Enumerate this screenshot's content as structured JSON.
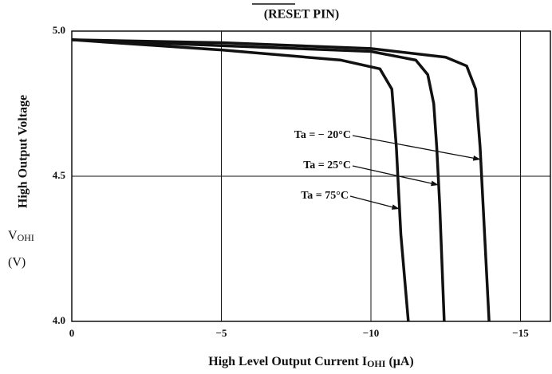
{
  "chart_data": {
    "type": "line",
    "title": "(RESET PIN)",
    "y_label": "High Output Voltage",
    "y_symbol": "V",
    "y_symbol_sub": "OHI",
    "y_unit": "(V)",
    "x_label": "High Level Output Current I",
    "x_label_sub": "OHI",
    "x_label_unit": " (μA)",
    "xlim": [
      0,
      -16
    ],
    "ylim": [
      4.0,
      5.0
    ],
    "xticks": [
      0,
      {
        "value": -5,
        "label": "−5"
      },
      {
        "value": -10,
        "label": "−10"
      },
      {
        "value": -15,
        "label": "−15"
      }
    ],
    "yticks": [
      {
        "value": 5.0,
        "label": "5.0"
      },
      4.5,
      {
        "value": 4.0,
        "label": "4.0"
      }
    ],
    "grid": true,
    "series": [
      {
        "name": "Ta = − 20°C",
        "color": "#111111",
        "x": [
          0,
          -5,
          -10,
          -12.5,
          -13.2,
          -13.5,
          -13.65,
          -13.75,
          -13.95
        ],
        "values": [
          4.97,
          4.96,
          4.94,
          4.91,
          4.88,
          4.8,
          4.6,
          4.4,
          4.0
        ]
      },
      {
        "name": "Ta = 25°C",
        "color": "#111111",
        "x": [
          0,
          -5,
          -10,
          -11.5,
          -11.9,
          -12.1,
          -12.2,
          -12.3,
          -12.45
        ],
        "values": [
          4.97,
          4.95,
          4.93,
          4.9,
          4.85,
          4.75,
          4.6,
          4.4,
          4.0
        ]
      },
      {
        "name": "Ta = 75°C",
        "color": "#111111",
        "x": [
          0,
          -5,
          -9,
          -10.3,
          -10.7,
          -10.85,
          -11.0,
          -11.25
        ],
        "values": [
          4.97,
          4.935,
          4.9,
          4.87,
          4.8,
          4.6,
          4.3,
          4.0
        ]
      }
    ]
  }
}
